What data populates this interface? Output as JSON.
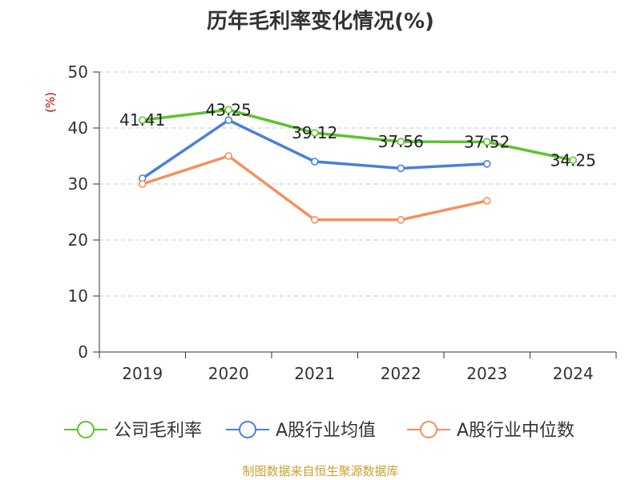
{
  "chart_data": {
    "type": "line",
    "title": "历年毛利率变化情况(%)",
    "ylabel": "(%)",
    "xlabel": "",
    "categories": [
      "2019",
      "2020",
      "2021",
      "2022",
      "2023",
      "2024"
    ],
    "ylim": [
      0,
      50
    ],
    "yticks": [
      0,
      10,
      20,
      30,
      40,
      50
    ],
    "grid": true,
    "legend_position": "bottom",
    "series": [
      {
        "name": "公司毛利率",
        "color": "#5cc42f",
        "values": [
          41.41,
          43.25,
          39.12,
          37.56,
          37.52,
          34.25
        ],
        "labels": [
          "41.41",
          "43.25",
          "39.12",
          "37.56",
          "37.52",
          "34.25"
        ]
      },
      {
        "name": "A股行业均值",
        "color": "#4a7fdb",
        "values": [
          31.0,
          41.4,
          34.0,
          32.8,
          33.6,
          null
        ]
      },
      {
        "name": "A股行业中位数",
        "color": "#f5905c",
        "values": [
          30.0,
          35.0,
          23.6,
          23.6,
          27.0,
          null
        ]
      }
    ]
  },
  "footer": {
    "source": "制图数据来自恒生聚源数据库"
  }
}
